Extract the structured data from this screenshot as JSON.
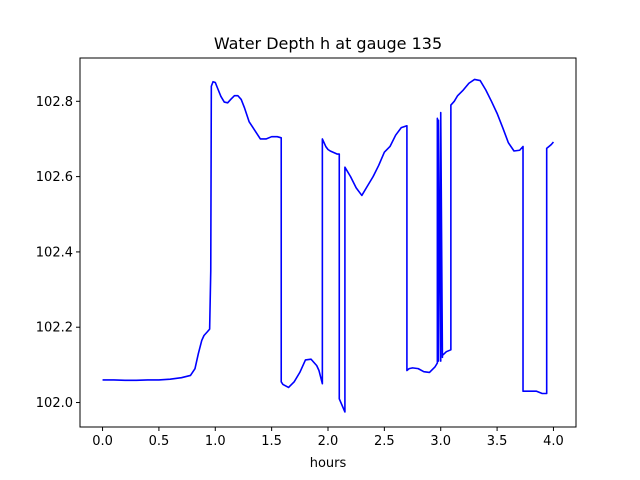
{
  "chart_data": {
    "type": "line",
    "title": "Water Depth h at gauge 135",
    "xlabel": "hours",
    "ylabel": "",
    "xlim": [
      -0.2,
      4.2
    ],
    "ylim": [
      101.935,
      102.915
    ],
    "xticks": [
      0.0,
      0.5,
      1.0,
      1.5,
      2.0,
      2.5,
      3.0,
      3.5,
      4.0
    ],
    "xtick_labels": [
      "0.0",
      "0.5",
      "1.0",
      "1.5",
      "2.0",
      "2.5",
      "3.0",
      "3.5",
      "4.0"
    ],
    "yticks": [
      102.0,
      102.2,
      102.4,
      102.6,
      102.8
    ],
    "ytick_labels": [
      "102.0",
      "102.2",
      "102.4",
      "102.6",
      "102.8"
    ],
    "grid": false,
    "color": "#0000ff",
    "series": [
      {
        "x": [
          0.0,
          0.1,
          0.2,
          0.3,
          0.4,
          0.5,
          0.6,
          0.7,
          0.78,
          0.82,
          0.85,
          0.88,
          0.9,
          0.93,
          0.95,
          0.96,
          0.965,
          0.965,
          0.98,
          1.0,
          1.02,
          1.05,
          1.08,
          1.11,
          1.14,
          1.17,
          1.2,
          1.23,
          1.26,
          1.3,
          1.35,
          1.4,
          1.45,
          1.5,
          1.55,
          1.585,
          1.585,
          1.6,
          1.65,
          1.7,
          1.75,
          1.8,
          1.85,
          1.9,
          1.92,
          1.95,
          1.95,
          1.98,
          2.0,
          2.02,
          2.05,
          2.08,
          2.1,
          2.1,
          2.15,
          2.15,
          2.2,
          2.25,
          2.3,
          2.35,
          2.4,
          2.45,
          2.5,
          2.55,
          2.6,
          2.65,
          2.7,
          2.7,
          2.72,
          2.75,
          2.8,
          2.85,
          2.9,
          2.95,
          2.97,
          2.97,
          2.98,
          2.98,
          3.0,
          3.0,
          3.015,
          3.015,
          3.05,
          3.09,
          3.09,
          3.12,
          3.15,
          3.2,
          3.25,
          3.3,
          3.35,
          3.4,
          3.45,
          3.5,
          3.55,
          3.6,
          3.65,
          3.7,
          3.73,
          3.73,
          3.8,
          3.85,
          3.9,
          3.94,
          3.94,
          3.98,
          4.0
        ],
        "y": [
          102.06,
          102.06,
          102.059,
          102.059,
          102.06,
          102.06,
          102.062,
          102.066,
          102.072,
          102.09,
          102.13,
          102.165,
          102.178,
          102.188,
          102.195,
          102.35,
          102.84,
          102.84,
          102.852,
          102.85,
          102.835,
          102.813,
          102.798,
          102.796,
          102.806,
          102.815,
          102.815,
          102.805,
          102.782,
          102.746,
          102.723,
          102.7,
          102.7,
          102.706,
          102.706,
          102.703,
          102.055,
          102.048,
          102.04,
          102.055,
          102.08,
          102.113,
          102.115,
          102.098,
          102.085,
          102.05,
          102.7,
          102.68,
          102.672,
          102.668,
          102.664,
          102.66,
          102.66,
          102.01,
          101.975,
          102.625,
          102.6,
          102.57,
          102.55,
          102.575,
          102.6,
          102.63,
          102.665,
          102.68,
          102.71,
          102.73,
          102.735,
          102.085,
          102.09,
          102.092,
          102.09,
          102.082,
          102.08,
          102.095,
          102.105,
          102.755,
          102.11,
          102.75,
          102.11,
          102.77,
          102.12,
          102.125,
          102.135,
          102.14,
          102.79,
          102.8,
          102.815,
          102.83,
          102.848,
          102.858,
          102.855,
          102.83,
          102.8,
          102.768,
          102.73,
          102.69,
          102.668,
          102.67,
          102.68,
          102.03,
          102.03,
          102.03,
          102.024,
          102.024,
          102.675,
          102.685,
          102.692
        ]
      }
    ]
  }
}
